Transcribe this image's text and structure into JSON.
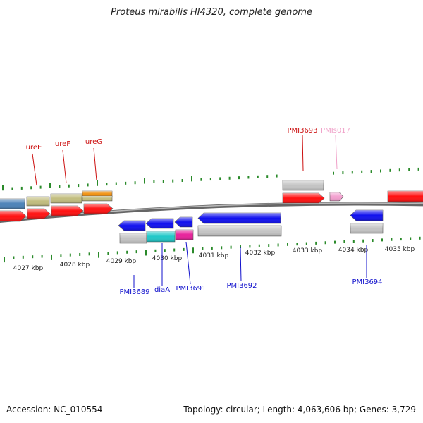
{
  "title": "Proteus mirabilis HI4320, complete genome",
  "accession": "Accession: NC_010554",
  "topology": "Topology: circular; Length: 4,063,606 bp; Genes: 3,729",
  "colors": {
    "cds_red": "#ff1010",
    "cds_blue": "#1010ee",
    "gene_gray": "#c4c4c4",
    "khaki": "#c2bd7e",
    "steel_blue": "#4a82b8",
    "orange": "#f09010",
    "cyan": "#20c8c8",
    "magenta": "#e8209a",
    "pink": "#f4a0d0",
    "tick_green": "#2a8a2a",
    "label_red": "#cc1010",
    "label_blue": "#1010cc",
    "label_pink": "#f0a0c8"
  },
  "scale_labels": [
    "4027 kbp",
    "4028 kbp",
    "4029 kbp",
    "4030 kbp",
    "4031 kbp",
    "4032 kbp",
    "4033 kbp",
    "4034 kbp",
    "4035 kbp"
  ],
  "upper_labels": [
    {
      "text": "ureE",
      "color": "label_red"
    },
    {
      "text": "ureF",
      "color": "label_red"
    },
    {
      "text": "ureG",
      "color": "label_red"
    },
    {
      "text": "PMI3693",
      "color": "label_red"
    },
    {
      "text": "PMIs017",
      "color": "label_pink"
    }
  ],
  "lower_labels": [
    {
      "text": "PMI3689",
      "color": "label_blue"
    },
    {
      "text": "diaA",
      "color": "label_blue"
    },
    {
      "text": "PMI3691",
      "color": "label_blue"
    },
    {
      "text": "PMI3692",
      "color": "label_blue"
    },
    {
      "text": "PMI3694",
      "color": "label_blue"
    }
  ]
}
